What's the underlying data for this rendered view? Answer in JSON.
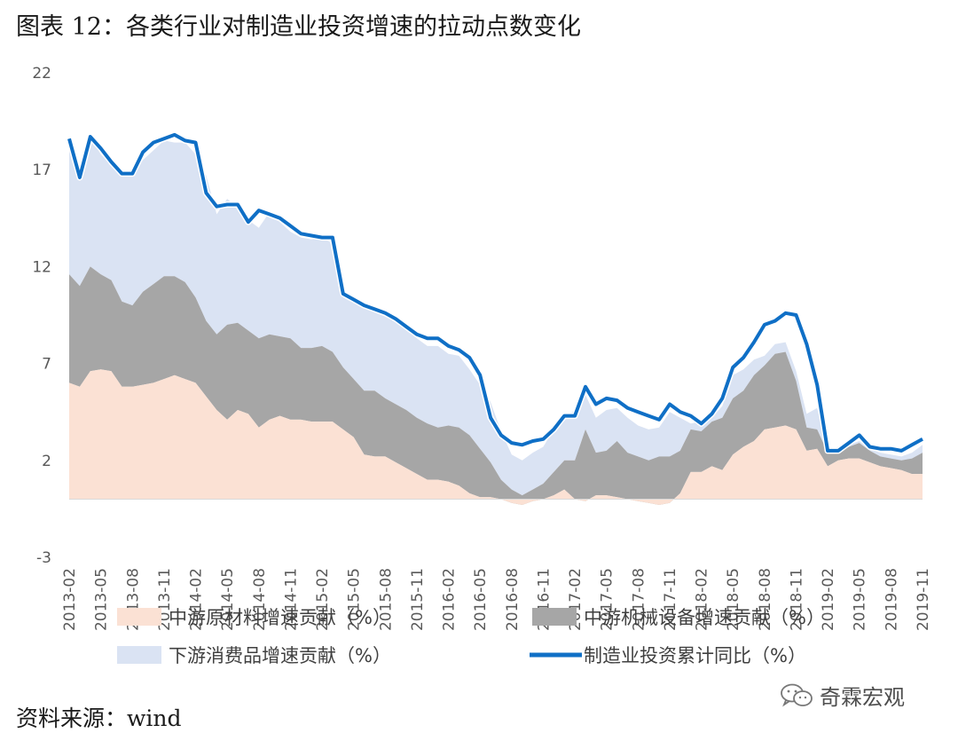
{
  "title": "图表 12：各类行业对制造业投资增速的拉动点数变化",
  "source": "资料来源：wind",
  "brand": {
    "text": "奇霖宏观",
    "icon": "wechat-icon"
  },
  "chart_data": {
    "type": "area",
    "ylim": [
      -3,
      22
    ],
    "yticks": [
      -3,
      2,
      7,
      12,
      17,
      22
    ],
    "xlabels": [
      "2013-02",
      "2013-05",
      "2013-08",
      "2013-11",
      "2014-02",
      "2014-05",
      "2014-08",
      "2014-11",
      "2015-02",
      "2015-05",
      "2015-08",
      "2015-11",
      "2016-02",
      "2016-05",
      "2016-08",
      "2016-11",
      "2017-02",
      "2017-05",
      "2017-08",
      "2017-11",
      "2018-02",
      "2018-05",
      "2018-08",
      "2018-11",
      "2019-02",
      "2019-05",
      "2019-08",
      "2019-11"
    ],
    "series": [
      {
        "name": "中游原材料增速贡献（%）",
        "color": "#fbe1d4",
        "values": [
          6,
          5.8,
          6.6,
          6.7,
          6.6,
          5.8,
          5.8,
          5.9,
          6,
          6.2,
          6.4,
          6.2,
          6,
          5.3,
          4.6,
          4.1,
          4.6,
          4.4,
          3.7,
          4.1,
          4.3,
          4.1,
          4.1,
          4,
          4,
          4,
          3.6,
          3.2,
          2.3,
          2.2,
          2.2,
          1.9,
          1.6,
          1.3,
          1,
          1,
          0.9,
          0.7,
          0.3,
          0.1,
          0.1,
          0,
          -0.2,
          -0.3,
          -0.1,
          0,
          0.2,
          0.5,
          0,
          -0.1,
          0.2,
          0.2,
          0.1,
          0,
          -0.1,
          -0.2,
          -0.3,
          -0.2,
          0.3,
          1.4,
          1.4,
          1.7,
          1.5,
          2.3,
          2.7,
          3,
          3.6,
          3.7,
          3.8,
          3.6,
          2.5,
          2.6,
          1.7,
          2,
          2.1,
          2.1,
          1.9,
          1.7,
          1.6,
          1.5,
          1.3,
          1.3
        ]
      },
      {
        "name": "中游机械设备增速贡献（%）",
        "color": "#a6a6a6",
        "values": [
          5.6,
          5.2,
          5.4,
          4.9,
          4.7,
          4.4,
          4.2,
          4.8,
          5.1,
          5.3,
          5.1,
          5,
          4.4,
          3.9,
          3.9,
          4.9,
          4.5,
          4.3,
          4.6,
          4.4,
          4.1,
          4.2,
          3.7,
          3.8,
          3.9,
          3.6,
          3.2,
          3,
          3.3,
          3.4,
          3,
          3,
          3,
          2.9,
          2.9,
          2.7,
          2.9,
          3,
          3,
          2.5,
          1.8,
          1,
          0.7,
          0.5,
          0.6,
          0.8,
          1.2,
          1.5,
          2,
          3.7,
          2.2,
          2.3,
          2.9,
          2.4,
          2.3,
          2.2,
          2.5,
          2.4,
          2.2,
          2.2,
          2.1,
          2.3,
          2.7,
          2.9,
          2.9,
          3.4,
          3.3,
          3.8,
          3.8,
          2.5,
          1.2,
          1,
          0.7,
          0.6,
          0.6,
          0.8,
          0.6,
          0.5,
          0.5,
          0.5,
          0.8,
          1.1
        ]
      },
      {
        "name": "下游消费品增速贡献（%）",
        "color": "#dae3f3",
        "values": [
          6.9,
          5.6,
          6.7,
          6.2,
          5.9,
          6.6,
          6.8,
          6.8,
          6.9,
          7,
          6.9,
          7.2,
          7.4,
          7.5,
          6.2,
          6.5,
          5.9,
          5.7,
          5.7,
          6.3,
          5.9,
          5.5,
          5.7,
          5.6,
          5.6,
          5.6,
          3.8,
          3.9,
          4.5,
          4.3,
          4.4,
          4.5,
          4.3,
          4.1,
          4,
          4.2,
          3.7,
          3.7,
          3.4,
          3.3,
          3.1,
          2.5,
          1.8,
          1.8,
          1.9,
          1.9,
          2.2,
          2.2,
          2.6,
          1.8,
          1.8,
          2.1,
          1.7,
          1.8,
          1.6,
          1.6,
          1.5,
          2.3,
          1.7,
          0.3,
          0.5,
          0.2,
          0.6,
          1.2,
          1.1,
          0.8,
          0.5,
          0.5,
          0.5,
          0.5,
          0.7,
          1.1,
          0.1,
          0.1,
          0.1,
          0.1,
          0.1,
          0.2,
          0.2,
          0.2,
          0.3,
          0.4
        ]
      },
      {
        "name": "制造业投资累计同比（%）",
        "color": "#0f6fc6",
        "values": [
          18.6,
          16.6,
          18.7,
          18.1,
          17.4,
          16.8,
          16.8,
          17.9,
          18.4,
          18.6,
          18.8,
          18.5,
          18.4,
          15.8,
          15.1,
          15.2,
          15.2,
          14.3,
          14.9,
          14.7,
          14.5,
          14.1,
          13.7,
          13.6,
          13.5,
          13.5,
          10.6,
          10.3,
          10,
          9.8,
          9.6,
          9.3,
          8.9,
          8.5,
          8.3,
          8.3,
          7.9,
          7.7,
          7.3,
          6.4,
          4.2,
          3.3,
          2.9,
          2.8,
          3,
          3.1,
          3.6,
          4.3,
          4.3,
          5.8,
          4.9,
          5.2,
          5.1,
          4.7,
          4.5,
          4.3,
          4.1,
          4.9,
          4.5,
          4.3,
          3.9,
          4.4,
          5.2,
          6.8,
          7.3,
          8.1,
          9,
          9.2,
          9.6,
          9.5,
          8,
          5.9,
          2.5,
          2.5,
          2.9,
          3.3,
          2.7,
          2.6,
          2.6,
          2.5,
          2.8,
          3.1
        ]
      }
    ],
    "legend": [
      {
        "label": "中游原材料增速贡献（%）",
        "kind": "area",
        "color": "#fbe1d4"
      },
      {
        "label": "中游机械设备增速贡献（%）",
        "kind": "area",
        "color": "#a6a6a6"
      },
      {
        "label": "下游消费品增速贡献（%）",
        "kind": "area",
        "color": "#dae3f3"
      },
      {
        "label": "制造业投资累计同比（%）",
        "kind": "line",
        "color": "#0f6fc6"
      }
    ]
  }
}
